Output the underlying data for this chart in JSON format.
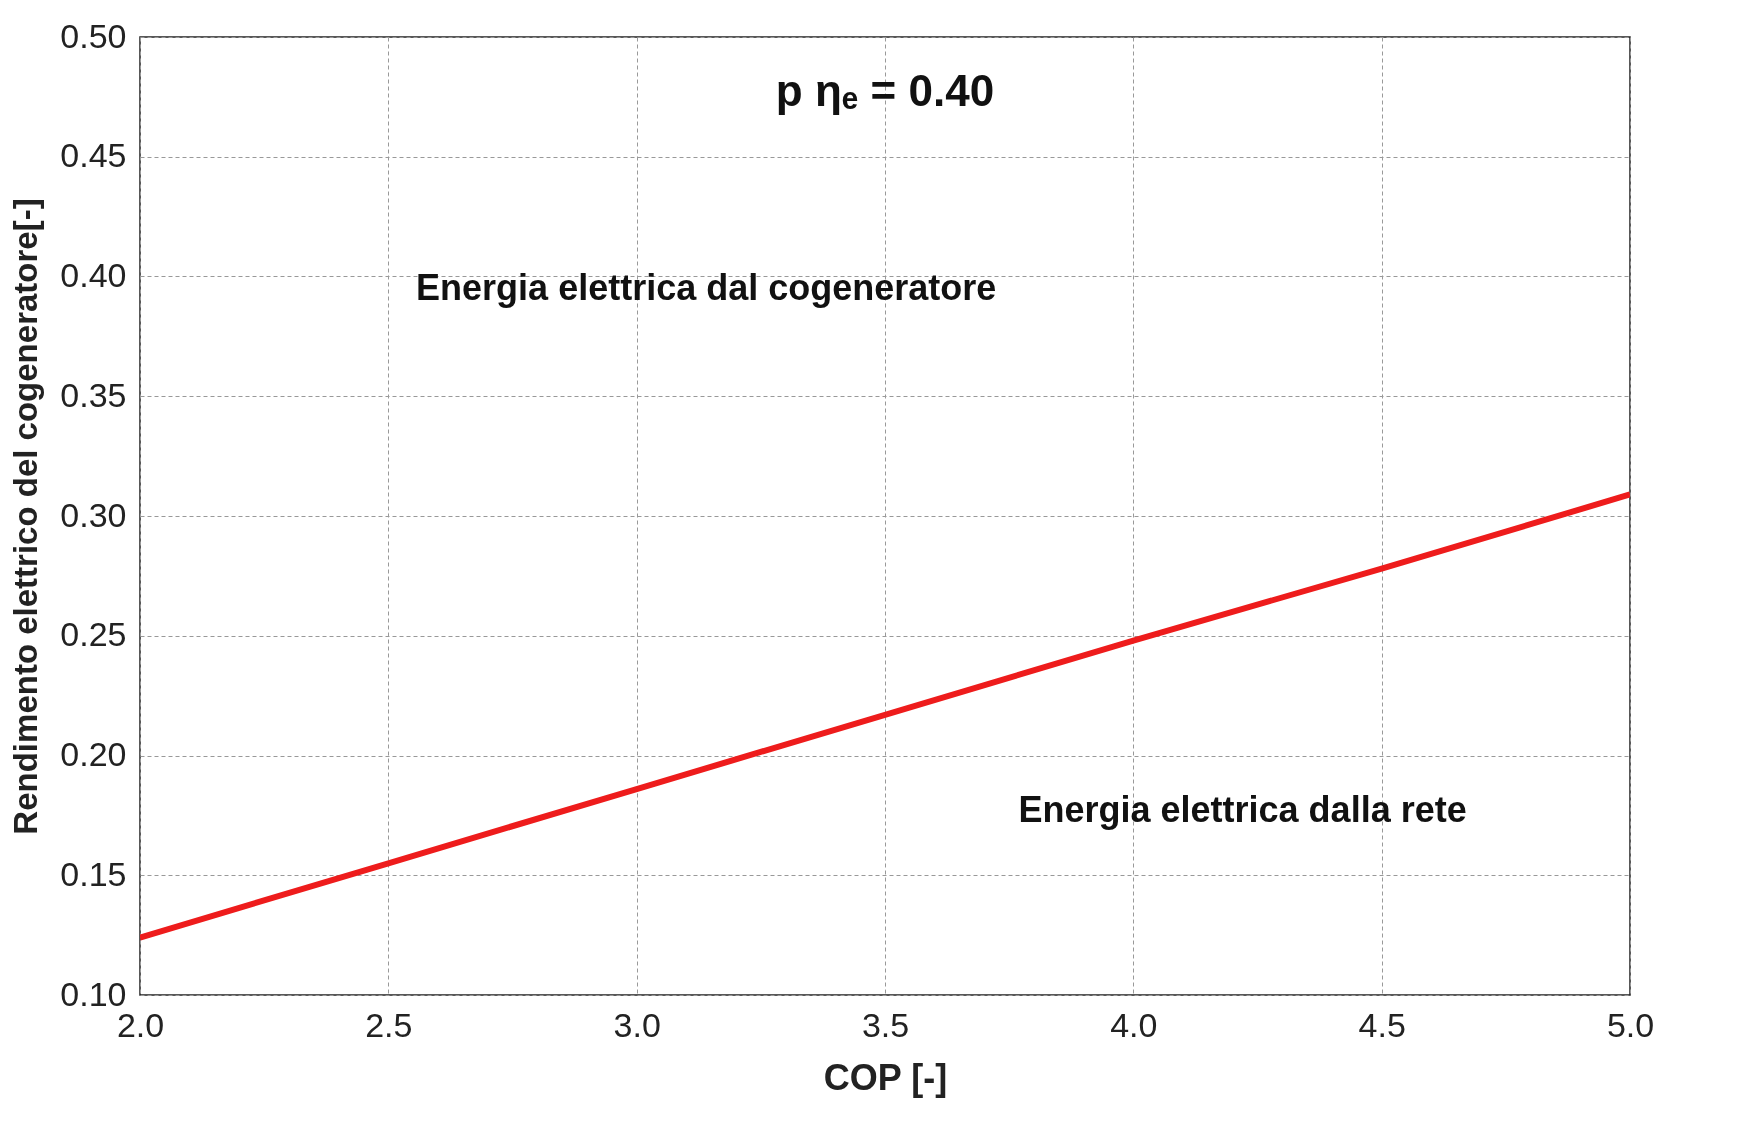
{
  "chart_data": {
    "type": "line",
    "xlabel": "COP [-]",
    "ylabel": "Rendimento elettrico del cogeneratore[-]",
    "annotations": [
      "p ηₑ = 0.40",
      "Energia elettrica dal cogeneratore",
      "Energia elettrica dalla rete"
    ],
    "x": [
      2.0,
      2.5,
      3.0,
      3.5,
      4.0,
      4.5,
      5.0
    ],
    "series": [
      {
        "color": "#ee1c1c",
        "values": [
          0.124,
          0.155,
          0.186,
          0.217,
          0.248,
          0.278,
          0.309
        ]
      }
    ],
    "xlim": [
      2.0,
      5.0
    ],
    "ylim": [
      0.1,
      0.5
    ],
    "xticks": [
      {
        "value": 2,
        "label": "2.0"
      },
      {
        "value": 2.5,
        "label": "2.5"
      },
      {
        "value": 3,
        "label": "3.0"
      },
      {
        "value": 3.5,
        "label": "3.5"
      },
      {
        "value": 4,
        "label": "4.0"
      },
      {
        "value": 4.5,
        "label": "4.5"
      },
      {
        "value": 5,
        "label": "5.0"
      }
    ],
    "yticks": [
      {
        "value": 0.1,
        "label": "0.10"
      },
      {
        "value": 0.15,
        "label": "0.15"
      },
      {
        "value": 0.2,
        "label": "0.20"
      },
      {
        "value": 0.25,
        "label": "0.25"
      },
      {
        "value": 0.3,
        "label": "0.30"
      },
      {
        "value": 0.35,
        "label": "0.35"
      },
      {
        "value": 0.4,
        "label": "0.40"
      },
      {
        "value": 0.45,
        "label": "0.45"
      },
      {
        "value": 0.5,
        "label": "0.50"
      }
    ],
    "grid": true,
    "line_style": "solid",
    "marker": "none"
  }
}
